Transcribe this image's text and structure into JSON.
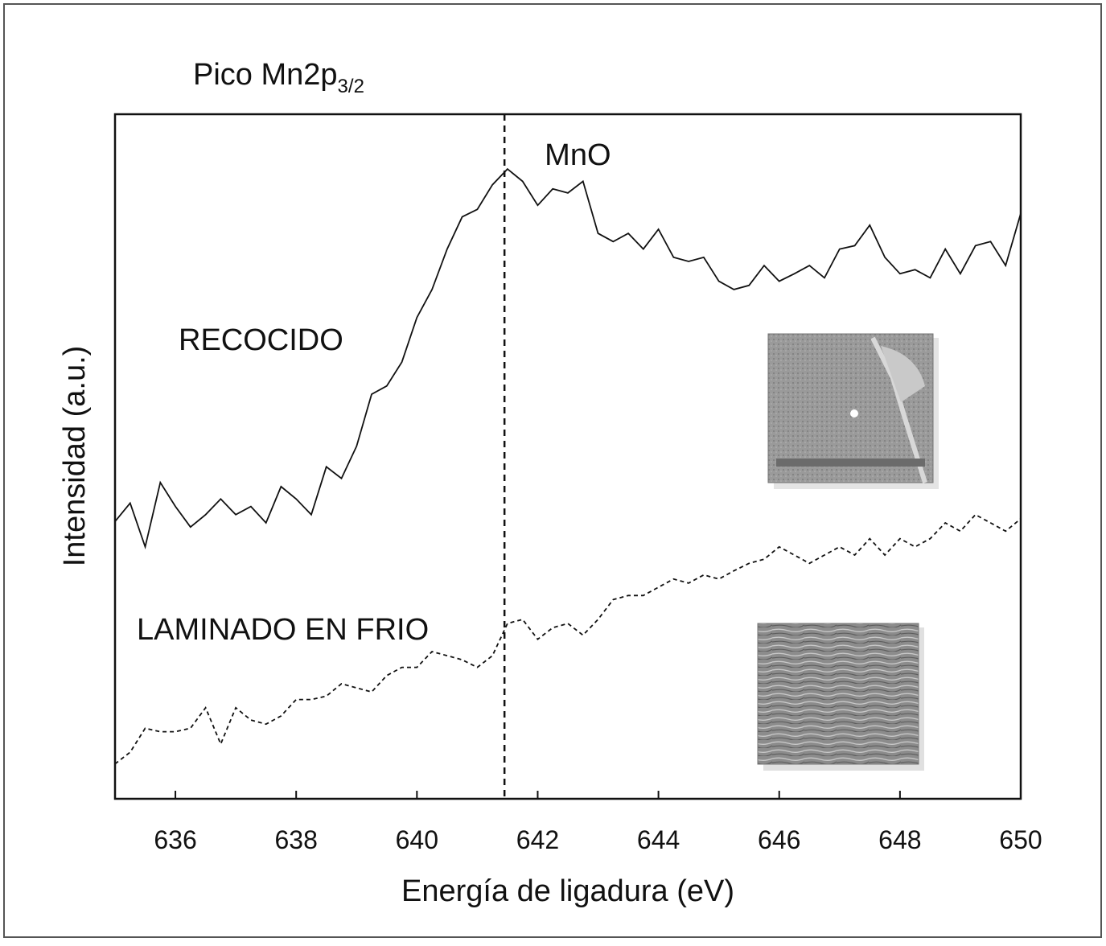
{
  "chart_data": {
    "type": "line",
    "title": "Pico Mn2p",
    "title_subscript": "3/2",
    "xlabel": "Energía de ligadura (eV)",
    "ylabel": "Intensidad (a.u.)",
    "xlim": [
      635,
      650
    ],
    "ylim": [
      0,
      100
    ],
    "xticks": [
      636,
      638,
      640,
      642,
      644,
      646,
      648,
      650
    ],
    "annotations": [
      {
        "text": "MnO",
        "x": 641.45
      }
    ],
    "x": [
      635,
      635.25,
      635.5,
      635.75,
      636,
      636.25,
      636.5,
      636.75,
      637,
      637.25,
      637.5,
      637.75,
      638,
      638.25,
      638.5,
      638.75,
      639,
      639.25,
      639.5,
      639.75,
      640,
      640.25,
      640.5,
      640.75,
      641,
      641.25,
      641.5,
      641.75,
      642,
      642.25,
      642.5,
      642.75,
      643,
      643.25,
      643.5,
      643.75,
      644,
      644.25,
      644.5,
      644.75,
      645,
      645.25,
      645.5,
      645.75,
      646,
      646.25,
      646.5,
      646.75,
      647,
      647.25,
      647.5,
      647.75,
      648,
      648.25,
      648.5,
      648.75,
      649,
      649.25,
      649.5,
      649.75,
      650
    ],
    "series": [
      {
        "name": "RECOCIDO",
        "color": "#111111",
        "style": "solid",
        "values": [
          40.5,
          43.2,
          36.8,
          46.2,
          42.7,
          39.7,
          41.5,
          43.8,
          41.5,
          42.7,
          40.3,
          45.6,
          43.8,
          41.5,
          48.5,
          46.8,
          51.5,
          59.1,
          60.3,
          63.8,
          70.3,
          74.4,
          80.3,
          85.0,
          86.1,
          89.7,
          92.0,
          90.2,
          86.7,
          89.1,
          88.5,
          90.2,
          82.6,
          81.4,
          82.6,
          80.3,
          83.2,
          79.1,
          78.5,
          79.1,
          75.6,
          74.4,
          75.0,
          77.9,
          75.6,
          76.7,
          77.9,
          76.1,
          80.3,
          80.8,
          83.8,
          79.1,
          76.7,
          77.3,
          76.1,
          80.3,
          76.7,
          80.8,
          81.4,
          77.9,
          85.5
        ]
      },
      {
        "name": "LAMINADO EN FRIO",
        "color": "#111111",
        "style": "dashed",
        "values": [
          5.1,
          6.8,
          10.3,
          9.8,
          9.8,
          10.3,
          13.3,
          8.0,
          13.3,
          11.5,
          10.9,
          12.1,
          14.5,
          14.5,
          15.0,
          16.8,
          16.2,
          15.6,
          18.0,
          19.2,
          19.2,
          21.5,
          20.9,
          20.3,
          19.2,
          20.9,
          25.6,
          26.2,
          23.3,
          25.0,
          25.6,
          23.9,
          26.2,
          29.1,
          29.7,
          29.7,
          30.9,
          32.1,
          31.5,
          32.7,
          32.1,
          33.3,
          34.4,
          35.0,
          36.8,
          35.6,
          34.4,
          35.6,
          36.8,
          35.6,
          38.0,
          35.6,
          38.0,
          36.8,
          38.0,
          40.3,
          39.1,
          41.5,
          40.3,
          39.1,
          40.9
        ]
      }
    ]
  }
}
